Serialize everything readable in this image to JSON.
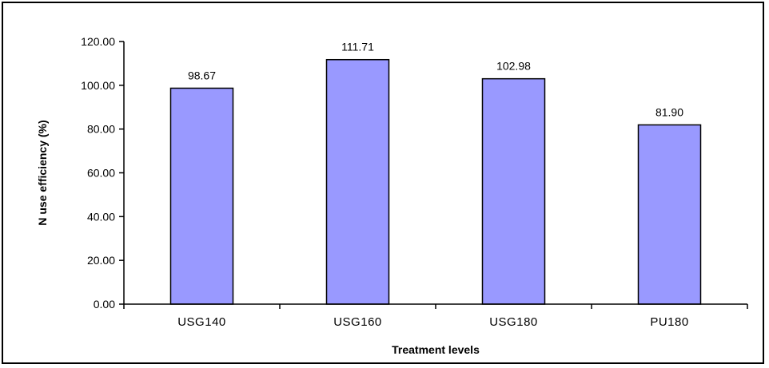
{
  "chart_data": {
    "type": "bar",
    "title": "",
    "xlabel": "Treatment levels",
    "ylabel": "N use efficiency  (%)",
    "categories": [
      "USG140",
      "USG160",
      "USG180",
      "PU180"
    ],
    "values": [
      98.67,
      111.71,
      102.98,
      81.9
    ],
    "data_labels": [
      "98.67",
      "111.71",
      "102.98",
      "81.90"
    ],
    "ylim": [
      0,
      120
    ],
    "yticks": [
      "0.00",
      "20.00",
      "40.00",
      "60.00",
      "80.00",
      "100.00",
      "120.00"
    ],
    "grid": false,
    "legend": "none",
    "bar_color": "#9999ff",
    "bar_edge_color": "#000000"
  }
}
